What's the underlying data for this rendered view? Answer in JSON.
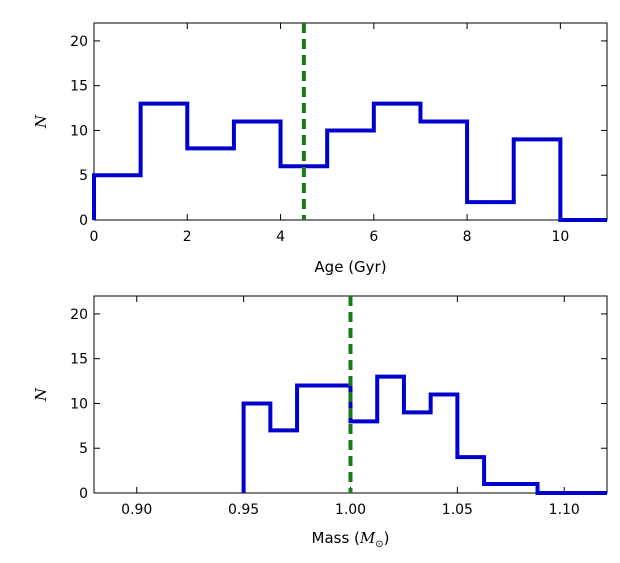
{
  "chart_data": [
    {
      "type": "histogram",
      "xlabel": "Age (Gyr)",
      "ylabel": "N",
      "xlim": [
        0,
        11
      ],
      "ylim": [
        0,
        22
      ],
      "xticks": [
        0,
        2,
        4,
        6,
        8,
        10
      ],
      "xtick_labels": [
        "0",
        "2",
        "4",
        "6",
        "8",
        "10"
      ],
      "yticks": [
        0,
        5,
        10,
        15,
        20
      ],
      "ytick_labels": [
        "0",
        "5",
        "10",
        "15",
        "20"
      ],
      "bin_edges": [
        0,
        1,
        2,
        3,
        4,
        5,
        6,
        7,
        8,
        9,
        10,
        11
      ],
      "counts": [
        5,
        13,
        8,
        11,
        6,
        10,
        13,
        11,
        2,
        9,
        0
      ],
      "vline": 4.5,
      "hist_color": "#0000cc",
      "vline_color": "#1a7a1a",
      "grid": false
    },
    {
      "type": "histogram",
      "xlabel_main": "Mass (",
      "xlabel_symbol": "M",
      "xlabel_subscript": "⊙",
      "xlabel_close": ")",
      "ylabel": "N",
      "xlim": [
        0.88,
        1.12
      ],
      "ylim": [
        0,
        22
      ],
      "xticks": [
        0.9,
        0.95,
        1.0,
        1.05,
        1.1
      ],
      "xtick_labels": [
        "0.90",
        "0.95",
        "1.00",
        "1.05",
        "1.10"
      ],
      "yticks": [
        0,
        5,
        10,
        15,
        20
      ],
      "ytick_labels": [
        "0",
        "5",
        "10",
        "15",
        "20"
      ],
      "bin_edges": [
        0.95,
        0.9625,
        0.975,
        0.9875,
        1.0,
        1.0125,
        1.025,
        1.0375,
        1.05,
        1.0625,
        1.075,
        1.0875,
        1.1,
        1.12
      ],
      "counts": [
        10,
        7,
        12,
        12,
        8,
        13,
        9,
        11,
        4,
        1,
        1,
        0,
        0
      ],
      "vline": 1.0,
      "hist_color": "#0000cc",
      "vline_color": "#1a7a1a",
      "grid": false
    }
  ]
}
